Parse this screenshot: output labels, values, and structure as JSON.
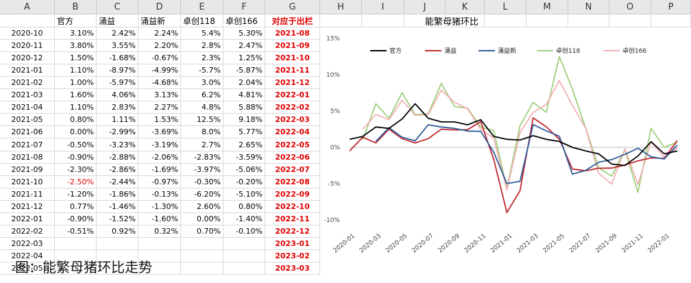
{
  "column_letters": [
    "A",
    "B",
    "C",
    "D",
    "E",
    "F",
    "G",
    "H",
    "I",
    "J",
    "K",
    "L",
    "M",
    "N",
    "O",
    "P"
  ],
  "headers": [
    "",
    "官方",
    "涌益",
    "涌益新",
    "卓创118",
    "卓创166",
    "对应于出栏"
  ],
  "rows": [
    [
      "2020-10",
      "3.10%",
      "2.42%",
      "2.24%",
      "5.4%",
      "5.30%",
      "2021-08"
    ],
    [
      "2020-11",
      "3.80%",
      "3.55%",
      "2.20%",
      "2.8%",
      "2.47%",
      "2021-09"
    ],
    [
      "2020-12",
      "1.50%",
      "-1.68%",
      "-0.67%",
      "2.3%",
      "1.25%",
      "2021-10"
    ],
    [
      "2021-01",
      "1.10%",
      "-8.97%",
      "-4.99%",
      "-5.7%",
      "-5.87%",
      "2021-11"
    ],
    [
      "2021-02",
      "1.00%",
      "-5.97%",
      "-4.68%",
      "3.0%",
      "2.04%",
      "2021-12"
    ],
    [
      "2021-03",
      "1.60%",
      "4.06%",
      "3.13%",
      "6.2%",
      "4.81%",
      "2022-01"
    ],
    [
      "2021-04",
      "1.10%",
      "2.83%",
      "2.27%",
      "4.8%",
      "5.88%",
      "2022-02"
    ],
    [
      "2021-05",
      "0.80%",
      "1.11%",
      "1.53%",
      "12.5%",
      "9.18%",
      "2022-03"
    ],
    [
      "2021-06",
      "0.00%",
      "-2.99%",
      "-3.69%",
      "8.0%",
      "5.77%",
      "2022-04"
    ],
    [
      "2021-07",
      "-0.50%",
      "-3.23%",
      "-3.19%",
      "2.7%",
      "2.65%",
      "2022-05"
    ],
    [
      "2021-08",
      "-0.90%",
      "-2.88%",
      "-2.06%",
      "-2.83%",
      "-3.59%",
      "2022-06"
    ],
    [
      "2021-09",
      "-2.30%",
      "-2.86%",
      "-1.69%",
      "-3.97%",
      "-5.06%",
      "2022-07"
    ],
    [
      "2021-10",
      "-2.50%",
      "-2.44%",
      "-0.97%",
      "-0.30%",
      "-0.20%",
      "2022-08"
    ],
    [
      "2021-11",
      "-1.20%",
      "-1.86%",
      "-0.13%",
      "-6.20%",
      "-5.10%",
      "2022-09"
    ],
    [
      "2021-12",
      "0.77%",
      "-1.46%",
      "-1.30%",
      "2.60%",
      "0.80%",
      "2022-10"
    ],
    [
      "2022-01",
      "-0.90%",
      "-1.52%",
      "-1.60%",
      "0.00%",
      "-1.40%",
      "2022-11"
    ],
    [
      "2022-02",
      "-0.51%",
      "0.92%",
      "0.32%",
      "0.70%",
      "-0.10%",
      "2022-12"
    ],
    [
      "2022-03",
      "",
      "",
      "",
      "",
      "",
      "2023-01"
    ],
    [
      "2022-04",
      "",
      "",
      "",
      "",
      "",
      "2023-02"
    ],
    [
      "2022-05",
      "",
      "",
      "",
      "",
      "",
      "2023-03"
    ]
  ],
  "red_cells": [
    [
      12,
      1
    ]
  ],
  "caption": "图：能繁母猪环比走势",
  "chart_data": {
    "type": "line",
    "title": "能繁母猪环比",
    "xlabel": "",
    "ylabel": "",
    "ylim": [
      -0.1,
      0.15
    ],
    "yticks": [
      "-10%",
      "-5%",
      "0%",
      "5%",
      "10%",
      "15%"
    ],
    "x": [
      "2020-01",
      "2020-02",
      "2020-03",
      "2020-04",
      "2020-05",
      "2020-06",
      "2020-07",
      "2020-08",
      "2020-09",
      "2020-10",
      "2020-11",
      "2020-12",
      "2021-01",
      "2021-02",
      "2021-03",
      "2021-04",
      "2021-05",
      "2021-06",
      "2021-07",
      "2021-08",
      "2021-09",
      "2021-10",
      "2021-11",
      "2021-12",
      "2022-01",
      "2022-02"
    ],
    "xtick_labels": [
      "2020-01",
      "2020-03",
      "2020-05",
      "2020-07",
      "2020-09",
      "2020-11",
      "2021-01",
      "2021-03",
      "2021-05",
      "2021-07",
      "2021-09",
      "2021-11",
      "2022-01"
    ],
    "legend_position": "top-left",
    "series": [
      {
        "name": "官方",
        "color": "#000000",
        "values": [
          0.011,
          0.015,
          0.028,
          0.026,
          0.039,
          0.06,
          0.04,
          0.035,
          0.035,
          0.031,
          0.038,
          0.015,
          0.011,
          0.01,
          0.016,
          0.011,
          0.008,
          0.0,
          -0.005,
          -0.009,
          -0.023,
          -0.025,
          -0.012,
          0.0077,
          -0.009,
          -0.0051
        ]
      },
      {
        "name": "涌益",
        "color": "#c0272d",
        "values": [
          -0.005,
          0.014,
          0.006,
          0.025,
          0.012,
          0.006,
          0.012,
          0.025,
          0.024,
          0.0242,
          0.0355,
          -0.0168,
          -0.0897,
          -0.0597,
          0.0406,
          0.0283,
          0.0111,
          -0.0299,
          -0.0323,
          -0.0288,
          -0.0286,
          -0.0244,
          -0.0186,
          -0.0146,
          -0.0152,
          0.0092
        ]
      },
      {
        "name": "涌益新",
        "color": "#2e5c9a",
        "values": [
          null,
          null,
          0.008,
          0.027,
          0.014,
          0.009,
          0.031,
          0.028,
          0.026,
          0.0224,
          0.022,
          -0.0067,
          -0.0499,
          -0.0468,
          0.0313,
          0.0227,
          0.0153,
          -0.0369,
          -0.0319,
          -0.0206,
          -0.0169,
          -0.0097,
          -0.0013,
          -0.013,
          -0.016,
          0.0032
        ]
      },
      {
        "name": "卓创118",
        "color": "#9ecf7c",
        "values": [
          null,
          0.01,
          0.06,
          0.04,
          0.075,
          0.045,
          0.046,
          0.088,
          0.056,
          0.054,
          0.028,
          0.023,
          -0.057,
          0.03,
          0.062,
          0.048,
          0.125,
          0.08,
          0.027,
          -0.0283,
          -0.0397,
          -0.003,
          -0.062,
          0.026,
          0.0,
          0.007
        ]
      },
      {
        "name": "卓创166",
        "color": "#f2b0b5",
        "values": [
          null,
          0.025,
          0.045,
          0.038,
          0.065,
          0.044,
          0.045,
          0.079,
          0.062,
          0.053,
          0.0247,
          0.0125,
          -0.0587,
          0.0204,
          0.0481,
          0.0588,
          0.0918,
          0.0577,
          0.0265,
          -0.0359,
          -0.0506,
          -0.002,
          -0.051,
          0.008,
          -0.014,
          -0.001
        ]
      }
    ]
  }
}
